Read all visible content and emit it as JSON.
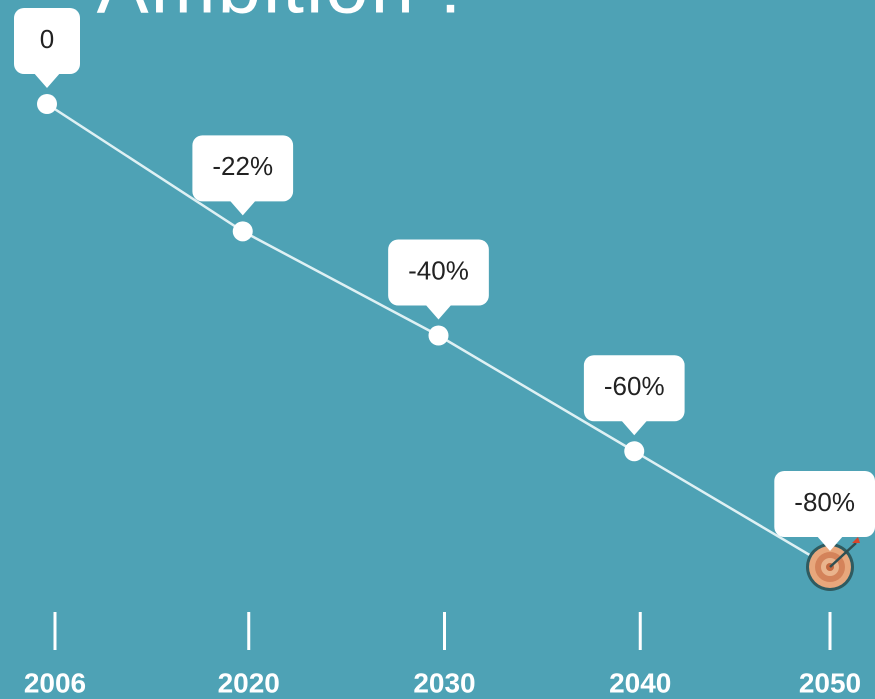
{
  "chart_data": {
    "type": "line",
    "title": "Ambition !",
    "categories": [
      "2006",
      "2020",
      "2030",
      "2040",
      "2050"
    ],
    "values": [
      0,
      -22,
      -40,
      -60,
      -80
    ],
    "value_labels": [
      "0",
      "-22%",
      "-40%",
      "-60%",
      "-80%"
    ],
    "color": "#dff1f4",
    "ylim": [
      -80,
      0
    ]
  }
}
